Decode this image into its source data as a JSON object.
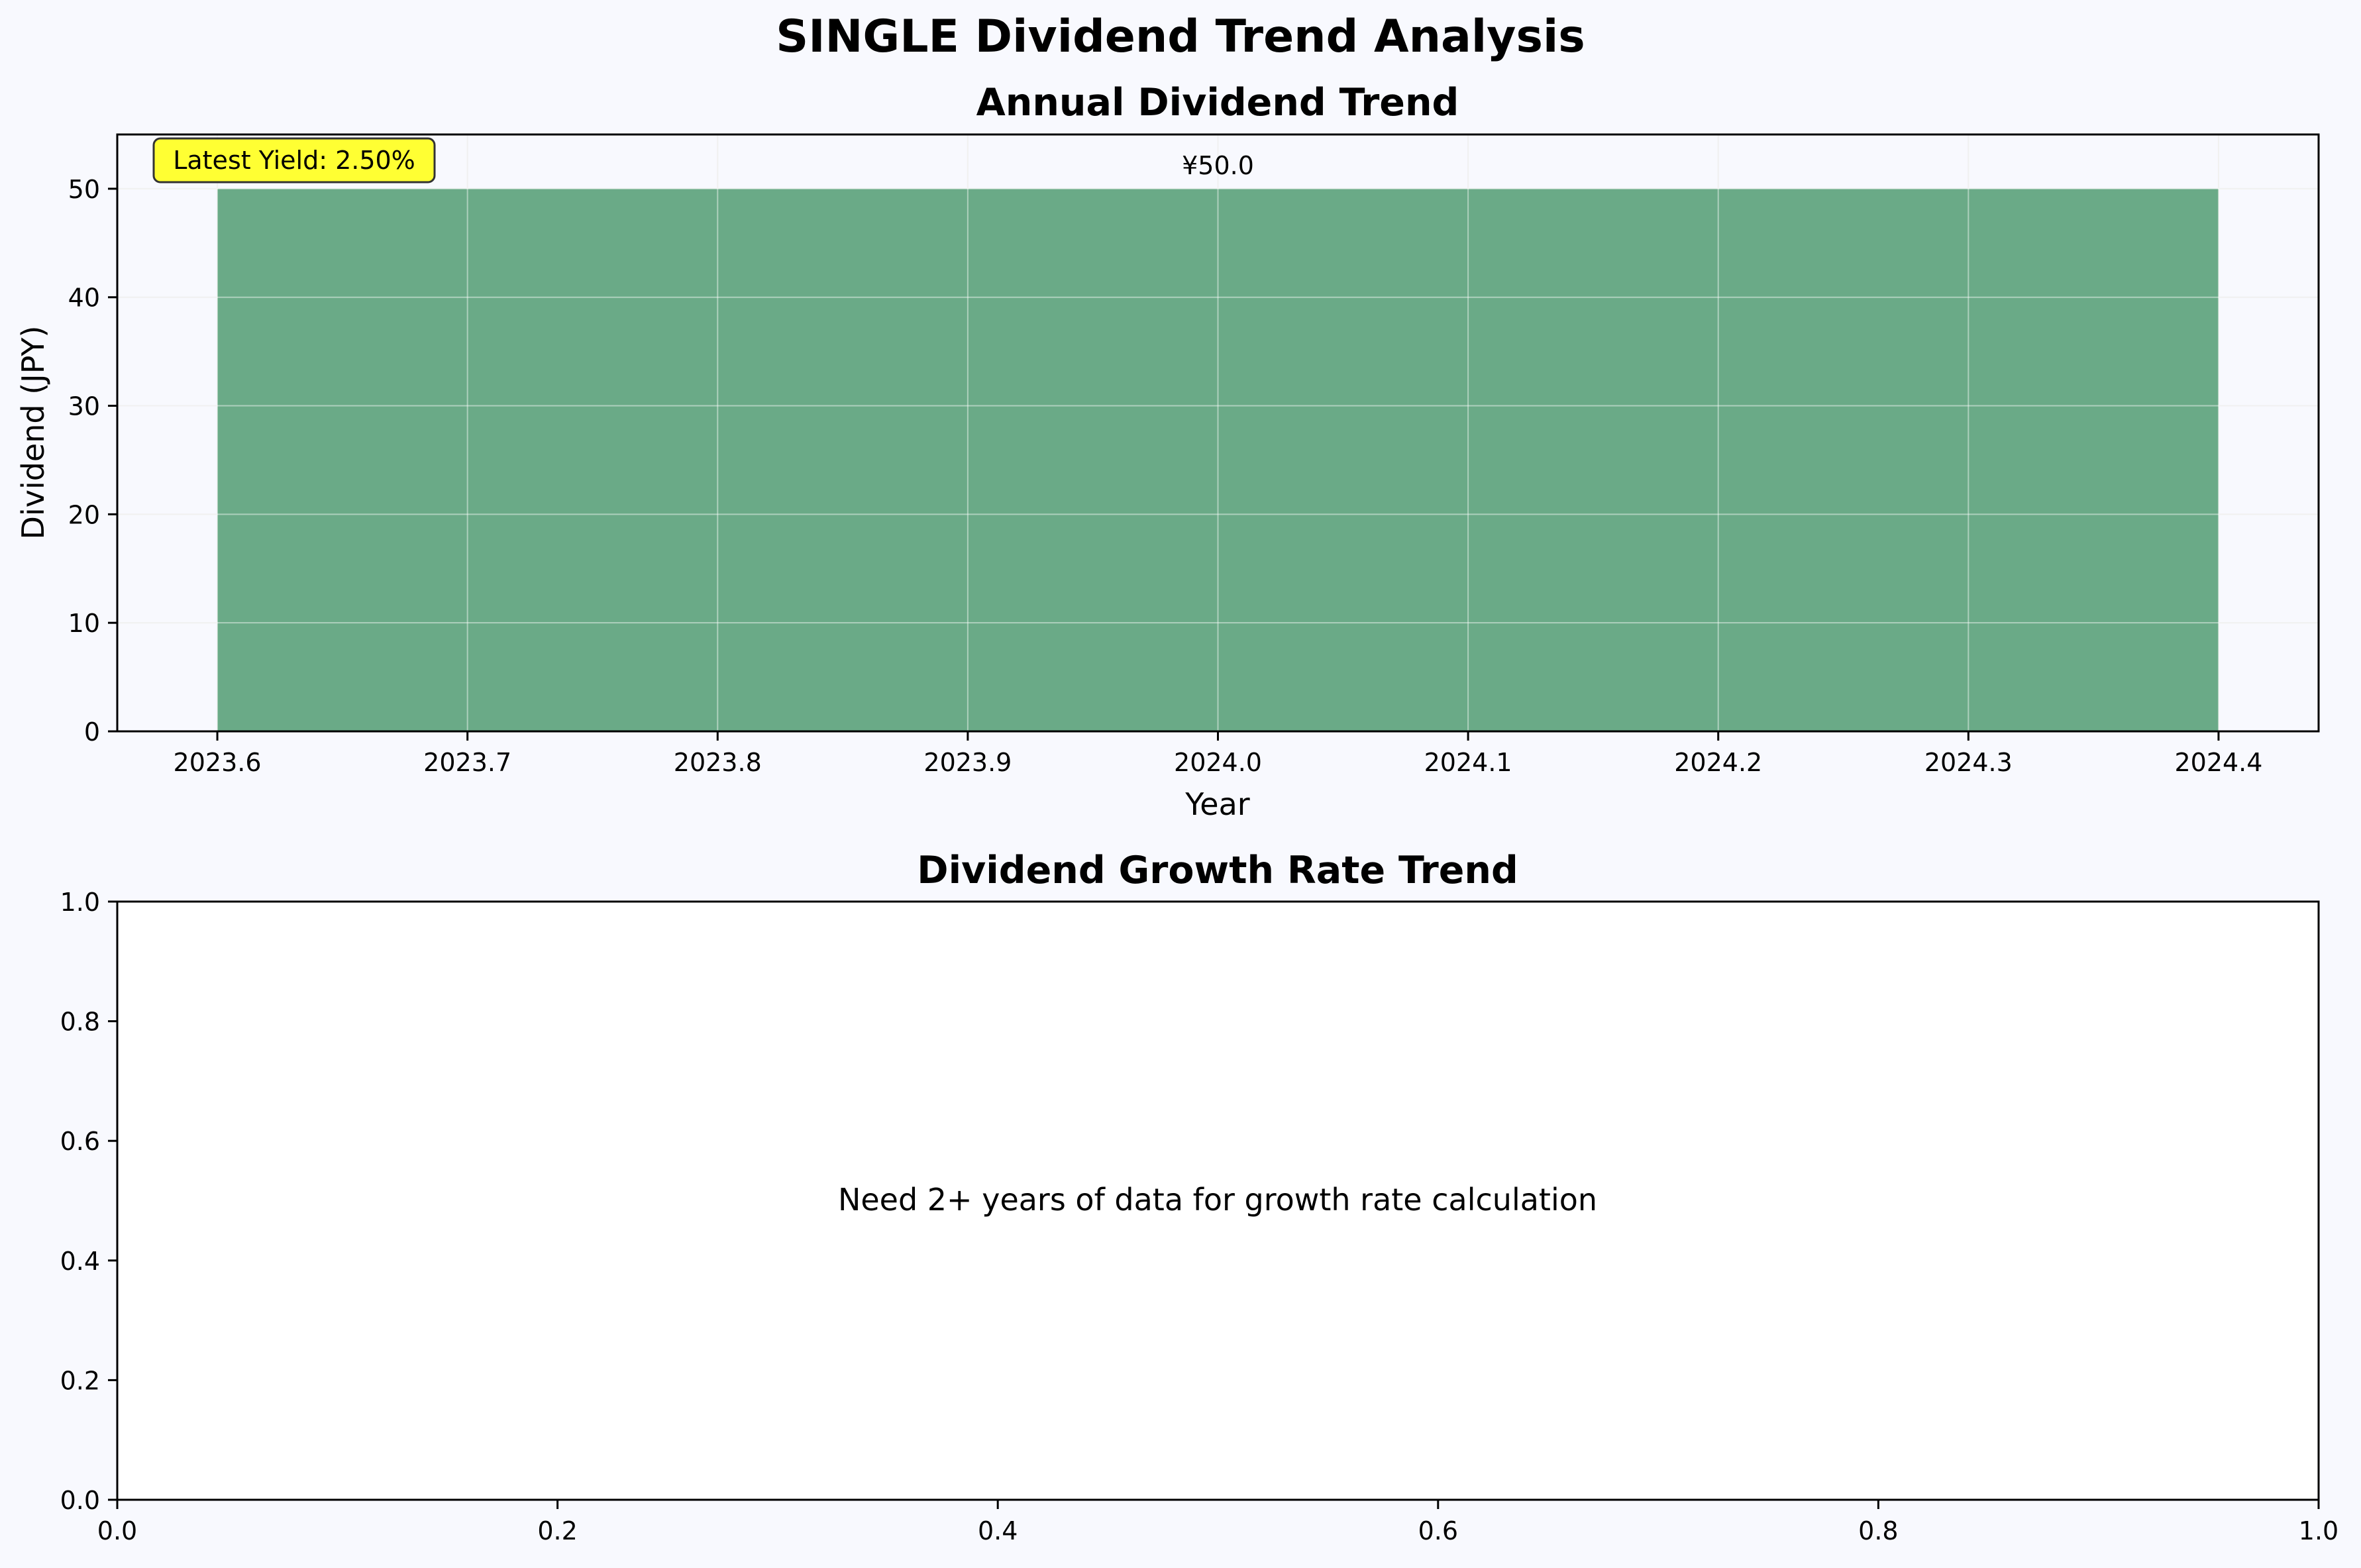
{
  "figure": {
    "suptitle": "SINGLE Dividend Trend Analysis"
  },
  "colors": {
    "figure_background": "#f8f9fe",
    "bar_fill": "#6aaa87",
    "badge_fill": "#ffff33",
    "grid": "#e6e6e6"
  },
  "chart_data": [
    {
      "type": "bar",
      "title": "Annual Dividend Trend",
      "xlabel": "Year",
      "ylabel": "Dividend (JPY)",
      "x": [
        2024
      ],
      "values": [
        50.0
      ],
      "bar_width": 0.8,
      "data_labels": [
        "¥50.0"
      ],
      "xlim": [
        2023.56,
        2024.44
      ],
      "ylim": [
        0,
        55
      ],
      "x_ticks": [
        "2023.6",
        "2023.7",
        "2023.8",
        "2023.9",
        "2024.0",
        "2024.1",
        "2024.2",
        "2024.3",
        "2024.4"
      ],
      "y_ticks": [
        "0",
        "10",
        "20",
        "30",
        "40",
        "50"
      ],
      "grid": true,
      "annotation": "Latest Yield: 2.50%"
    },
    {
      "type": "line",
      "title": "Dividend Growth Rate Trend",
      "xlabel": "",
      "ylabel": "",
      "xlim": [
        0,
        1
      ],
      "ylim": [
        0,
        1
      ],
      "x_ticks": [
        "0.0",
        "0.2",
        "0.4",
        "0.6",
        "0.8",
        "1.0"
      ],
      "y_ticks": [
        "0.0",
        "0.2",
        "0.4",
        "0.6",
        "0.8",
        "1.0"
      ],
      "grid": false,
      "message": "Need 2+ years of data for growth rate calculation"
    }
  ]
}
